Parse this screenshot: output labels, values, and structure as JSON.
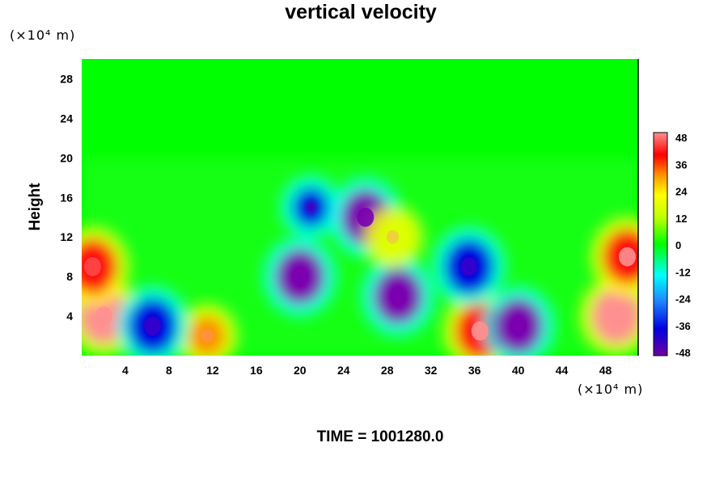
{
  "chart_data": {
    "type": "heatmap",
    "title": "vertical velocity",
    "ylabel": "Height",
    "xunit": "(×10⁴ m)",
    "yunit": "(×10⁴ m)",
    "footer": "TIME = 1001280.0",
    "xlim": [
      0,
      51
    ],
    "ylim": [
      0,
      30
    ],
    "x_ticks": [
      4,
      8,
      12,
      16,
      20,
      24,
      28,
      32,
      36,
      40,
      44,
      48
    ],
    "y_ticks": [
      4,
      8,
      12,
      16,
      20,
      24,
      28
    ],
    "colorbar": {
      "range": [
        -48,
        48
      ],
      "ticks": [
        48,
        36,
        24,
        12,
        0,
        -12,
        -24,
        -36,
        -48
      ]
    },
    "features": [
      {
        "x": 2.0,
        "y": 4.0,
        "value": 48
      },
      {
        "x": 1.0,
        "y": 9.0,
        "value": 38
      },
      {
        "x": 49.0,
        "y": 4.0,
        "value": 48
      },
      {
        "x": 50.0,
        "y": 10.0,
        "value": 40
      },
      {
        "x": 11.5,
        "y": 2.0,
        "value": 24
      },
      {
        "x": 36.5,
        "y": 2.5,
        "value": 40
      },
      {
        "x": 6.5,
        "y": 3.0,
        "value": -38
      },
      {
        "x": 20.0,
        "y": 8.0,
        "value": -44
      },
      {
        "x": 21.0,
        "y": 15.0,
        "value": -34
      },
      {
        "x": 26.0,
        "y": 14.0,
        "value": -44
      },
      {
        "x": 29.0,
        "y": 6.0,
        "value": -46
      },
      {
        "x": 40.0,
        "y": 3.0,
        "value": -48
      },
      {
        "x": 35.5,
        "y": 9.0,
        "value": -36
      },
      {
        "x": 28.5,
        "y": 12.0,
        "value": 14
      }
    ]
  }
}
